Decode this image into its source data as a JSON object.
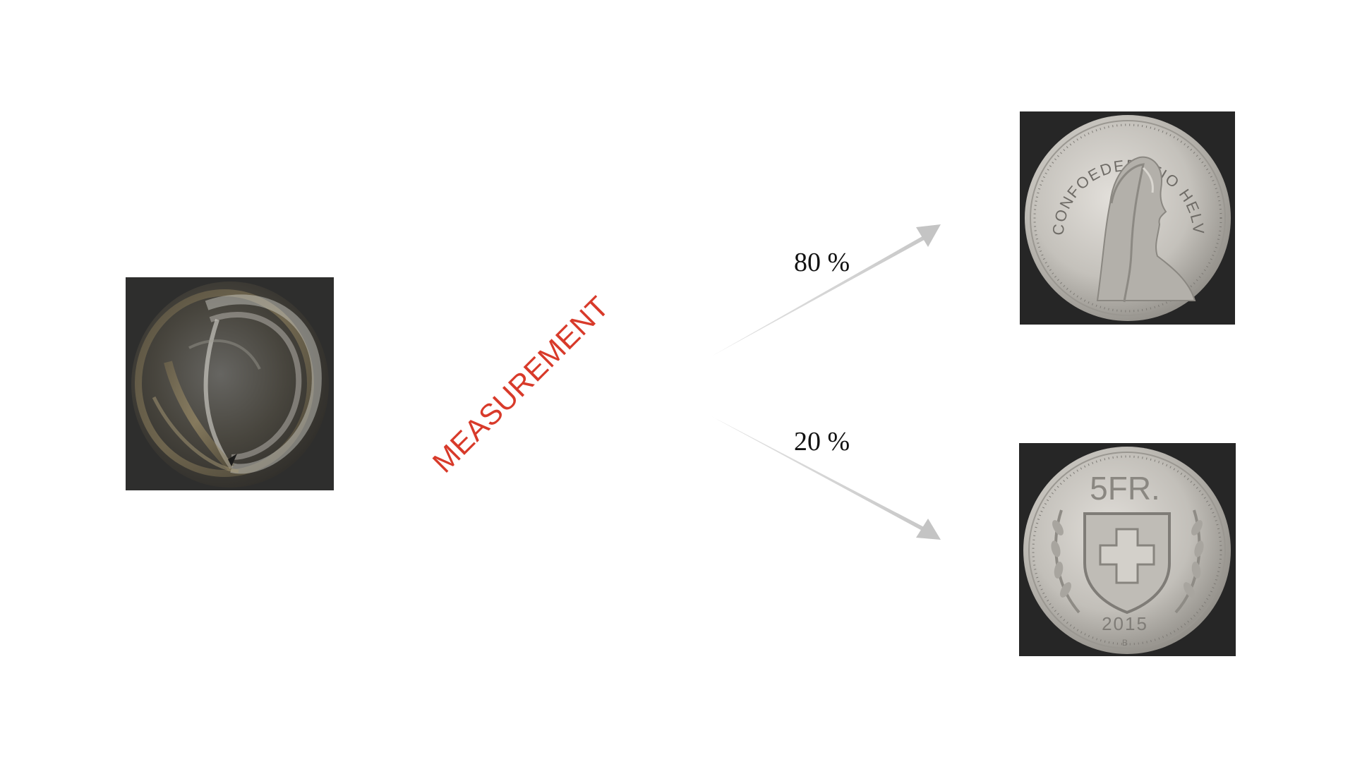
{
  "measurement_label": "MEASUREMENT",
  "outcomes": [
    {
      "label": "80 %",
      "probability": 0.8,
      "result": "heads"
    },
    {
      "label": "20 %",
      "probability": 0.2,
      "result": "tails"
    }
  ],
  "heads_coin": {
    "inscription": "CONFOEDERATIO HELVETICA"
  },
  "tails_coin": {
    "denomination": "5FR.",
    "year": "2015",
    "mint_mark": "B"
  },
  "colors": {
    "measurement": "#d83a2a",
    "arrow": "#c8c8c8",
    "photo_background": "#2a2a2a",
    "coin_silver": "#c9c6c1"
  },
  "icons": {
    "spinning_coin": "spinning-coin-photo",
    "heads_coin": "coin-heads-photo",
    "tails_coin": "coin-tails-photo"
  }
}
